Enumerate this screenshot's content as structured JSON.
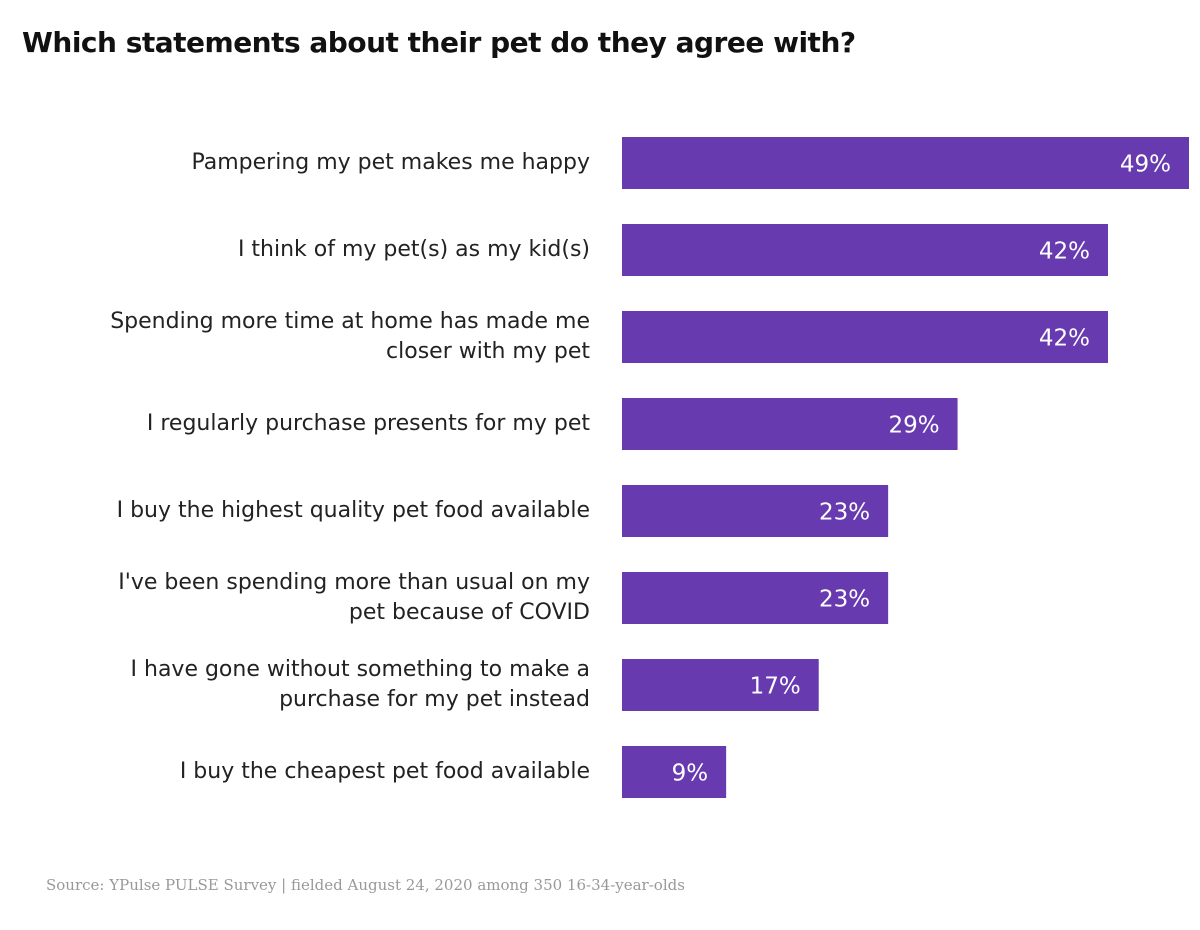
{
  "chart_data": {
    "type": "bar",
    "orientation": "horizontal",
    "title": "Which statements about their pet do they agree with?",
    "categories": [
      "Pampering my pet makes me happy",
      "I think of my pet(s) as my kid(s)",
      "Spending more time at home has made me\ncloser with my pet",
      "I regularly purchase presents for my pet",
      "I buy the highest quality pet food available",
      "I've been spending more than usual on my\npet because of COVID",
      "I have gone without something to make a\npurchase for my pet instead",
      "I buy the cheapest pet food available"
    ],
    "values": [
      49,
      42,
      42,
      29,
      23,
      23,
      17,
      9
    ],
    "value_labels": [
      "49%",
      "42%",
      "42%",
      "29%",
      "23%",
      "23%",
      "17%",
      "9%"
    ],
    "color": "#673ab0",
    "source": "Source: YPulse PULSE Survey | fielded August 24, 2020 among 350 16-34-year-olds"
  }
}
